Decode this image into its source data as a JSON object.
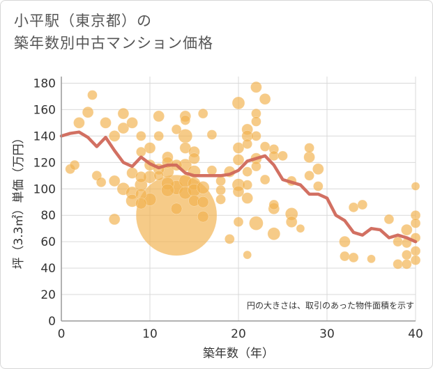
{
  "title": {
    "line1": "小平駅（東京都）の",
    "line2": "築年数別中古マンション価格"
  },
  "chart_data": {
    "type": "scatter",
    "xlabel": "築年数（年）",
    "ylabel": "坪（3.3㎡）単価（万円）",
    "xlim": [
      0,
      40
    ],
    "ylim": [
      0,
      185
    ],
    "xticks": [
      0,
      10,
      20,
      30,
      40
    ],
    "yticks": [
      0,
      20,
      40,
      60,
      80,
      100,
      120,
      140,
      160,
      180
    ],
    "grid": true,
    "note": "円の大きさは、取引のあった物件面積を示す",
    "colors": {
      "bubble": "#f2b24f",
      "line": "#d0685a",
      "grid": "#d9d9d9",
      "axis": "#999999"
    },
    "series": [
      {
        "type": "bubble",
        "points": [
          [
            1,
            115,
            7
          ],
          [
            1.5,
            118,
            7
          ],
          [
            2,
            150,
            8
          ],
          [
            3,
            158,
            8
          ],
          [
            3.5,
            171,
            7
          ],
          [
            4,
            110,
            7
          ],
          [
            4.5,
            105,
            7
          ],
          [
            5,
            150,
            8
          ],
          [
            6,
            140,
            8
          ],
          [
            6,
            106,
            8
          ],
          [
            6,
            77,
            8
          ],
          [
            7,
            157,
            8
          ],
          [
            7,
            146,
            8
          ],
          [
            7,
            100,
            9
          ],
          [
            8,
            150,
            8
          ],
          [
            8,
            112,
            8
          ],
          [
            8,
            97,
            9
          ],
          [
            8,
            91,
            9
          ],
          [
            9,
            140,
            7
          ],
          [
            9,
            128,
            7
          ],
          [
            9,
            109,
            8
          ],
          [
            9,
            103,
            9
          ],
          [
            9,
            96,
            8
          ],
          [
            9,
            89,
            8
          ],
          [
            10,
            131,
            8
          ],
          [
            10,
            118,
            8
          ],
          [
            10,
            109,
            9
          ],
          [
            10,
            92,
            9
          ],
          [
            11,
            155,
            8
          ],
          [
            11,
            140,
            7
          ],
          [
            11,
            115,
            8
          ],
          [
            11,
            110,
            7
          ],
          [
            12,
            124,
            8
          ],
          [
            12,
            120,
            8
          ],
          [
            12,
            113,
            9
          ],
          [
            12,
            104,
            9
          ],
          [
            12,
            99,
            9
          ],
          [
            13,
            145,
            7
          ],
          [
            13,
            118,
            8
          ],
          [
            13,
            101,
            10
          ],
          [
            13,
            85,
            8
          ],
          [
            13,
            80,
            58
          ],
          [
            14,
            155,
            8
          ],
          [
            14,
            152,
            7
          ],
          [
            14,
            140,
            10
          ],
          [
            14,
            131,
            8
          ],
          [
            14,
            118,
            9
          ],
          [
            14,
            106,
            9
          ],
          [
            14,
            97,
            9
          ],
          [
            15,
            128,
            8
          ],
          [
            15,
            123,
            8
          ],
          [
            15,
            113,
            9
          ],
          [
            15,
            104,
            9
          ],
          [
            15,
            99,
            9
          ],
          [
            15,
            91,
            8
          ],
          [
            16,
            157,
            7
          ],
          [
            16,
            101,
            9
          ],
          [
            16,
            90,
            8
          ],
          [
            16,
            79,
            8
          ],
          [
            17,
            141,
            7
          ],
          [
            17,
            114,
            7
          ],
          [
            18,
            106,
            7
          ],
          [
            18,
            99,
            7
          ],
          [
            18,
            92,
            7
          ],
          [
            19,
            113,
            8
          ],
          [
            19,
            62,
            7
          ],
          [
            20,
            165,
            9
          ],
          [
            20,
            131,
            8
          ],
          [
            20,
            122,
            8
          ],
          [
            20,
            103,
            9
          ],
          [
            20,
            98,
            8
          ],
          [
            20,
            75,
            7
          ],
          [
            21,
            145,
            8
          ],
          [
            21,
            140,
            8
          ],
          [
            21,
            134,
            7
          ],
          [
            21,
            113,
            7
          ],
          [
            21,
            103,
            7
          ],
          [
            21,
            93,
            8
          ],
          [
            21,
            50,
            6
          ],
          [
            22,
            177,
            8
          ],
          [
            22,
            157,
            7
          ],
          [
            22,
            151,
            7
          ],
          [
            22,
            140,
            7
          ],
          [
            22,
            123,
            8
          ],
          [
            22,
            117,
            7
          ],
          [
            22,
            74,
            10
          ],
          [
            23,
            168,
            8
          ],
          [
            23,
            132,
            7
          ],
          [
            23,
            107,
            7
          ],
          [
            24,
            130,
            7
          ],
          [
            24,
            125,
            7
          ],
          [
            24,
            88,
            7
          ],
          [
            24,
            85,
            8
          ],
          [
            24,
            66,
            9
          ],
          [
            25,
            125,
            7
          ],
          [
            26,
            106,
            7
          ],
          [
            26,
            81,
            9
          ],
          [
            26,
            75,
            8
          ],
          [
            27,
            70,
            6
          ],
          [
            28,
            131,
            7
          ],
          [
            28,
            124,
            8
          ],
          [
            28,
            110,
            7
          ],
          [
            29,
            115,
            8
          ],
          [
            29,
            102,
            7
          ],
          [
            32,
            60,
            8
          ],
          [
            32,
            49,
            7
          ],
          [
            33,
            86,
            7
          ],
          [
            33,
            48,
            7
          ],
          [
            34,
            88,
            7
          ],
          [
            35,
            47,
            6
          ],
          [
            37,
            77,
            7
          ],
          [
            38,
            60,
            7
          ],
          [
            38,
            43,
            7
          ],
          [
            39,
            69,
            8
          ],
          [
            39,
            59,
            7
          ],
          [
            39,
            50,
            7
          ],
          [
            39,
            43,
            7
          ],
          [
            40,
            102,
            6
          ],
          [
            40,
            80,
            7
          ],
          [
            40,
            74,
            7
          ],
          [
            40,
            63,
            7
          ],
          [
            40,
            53,
            7
          ],
          [
            40,
            46,
            7
          ]
        ]
      },
      {
        "type": "line",
        "x": [
          0,
          1,
          2,
          3,
          4,
          5,
          6,
          7,
          8,
          9,
          10,
          11,
          12,
          13,
          14,
          15,
          16,
          17,
          18,
          19,
          20,
          21,
          22,
          23,
          24,
          25,
          26,
          27,
          28,
          29,
          30,
          31,
          32,
          33,
          34,
          35,
          36,
          37,
          38,
          39,
          40
        ],
        "y": [
          140,
          142,
          143,
          139,
          132,
          139,
          129,
          120,
          117,
          124,
          119,
          116,
          118,
          118,
          112,
          110,
          110,
          110,
          110,
          111,
          114,
          121,
          123,
          125,
          118,
          107,
          105,
          103,
          96,
          96,
          93,
          80,
          76,
          67,
          65,
          70,
          69,
          63,
          65,
          63,
          60
        ]
      }
    ]
  }
}
